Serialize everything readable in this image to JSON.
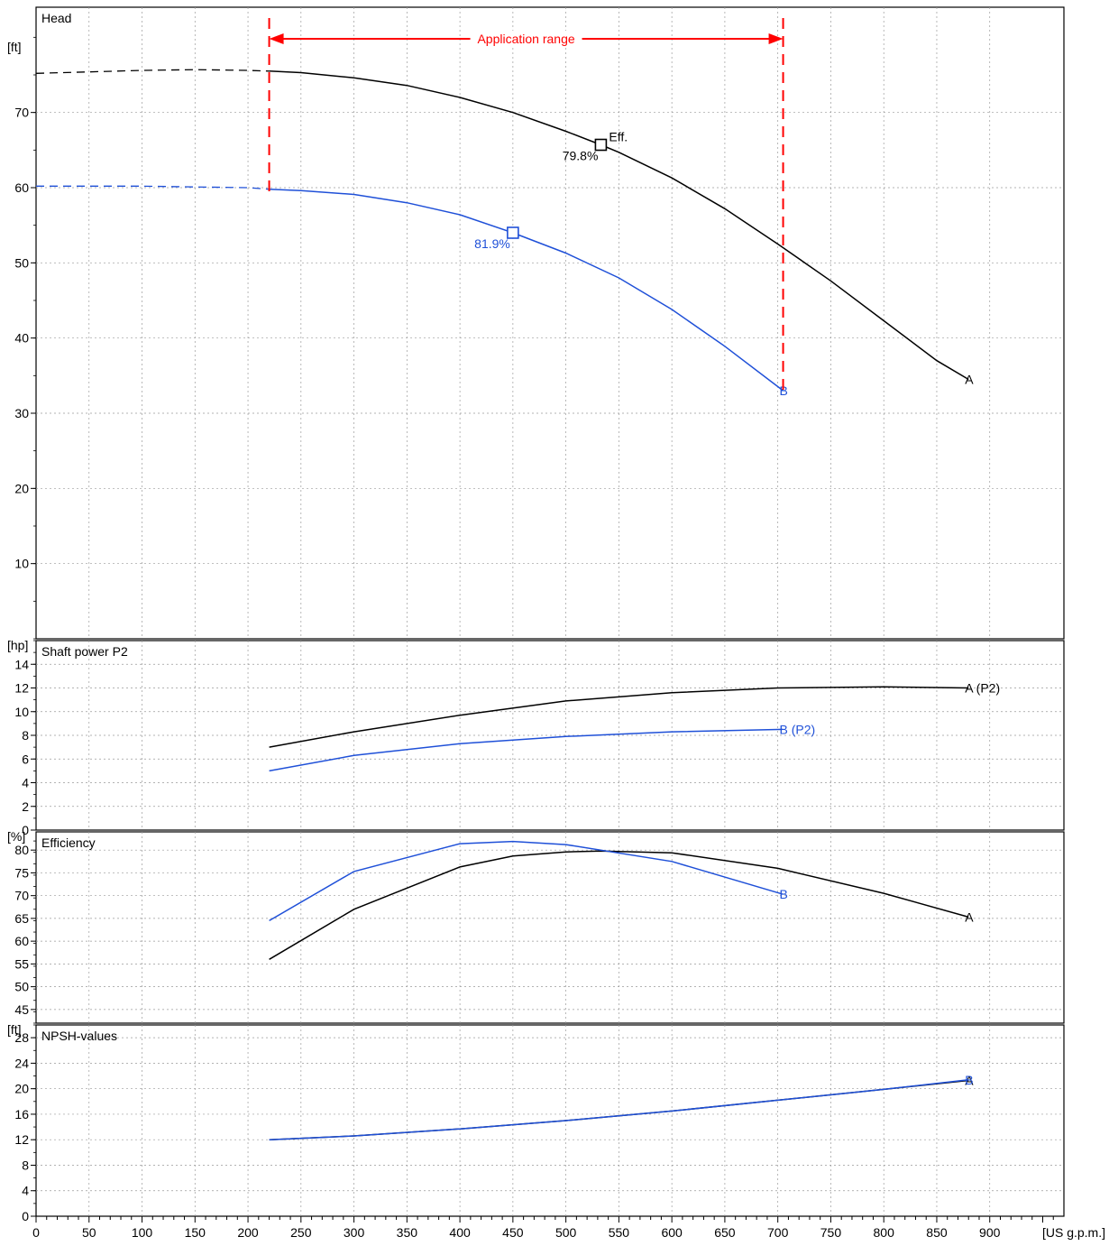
{
  "colors": {
    "series_a": "#000000",
    "series_b": "#1f50d8",
    "application_range": "#ff0000",
    "grid": "#9a9a9a",
    "frame": "#000000"
  },
  "x_axis": {
    "unit_label": "[US g.p.m.]",
    "range": [
      0,
      970
    ],
    "ticks": [
      0,
      50,
      100,
      150,
      200,
      250,
      300,
      350,
      400,
      450,
      500,
      550,
      600,
      650,
      700,
      750,
      800,
      850,
      900
    ],
    "tick_labels": [
      "0",
      "50",
      "100",
      "150",
      "200",
      "250",
      "300",
      "350",
      "400",
      "450",
      "500",
      "550",
      "600",
      "650",
      "700",
      "750",
      "800",
      "850",
      "900"
    ],
    "minor_step": 10
  },
  "application_range": {
    "label": "Application range",
    "x_start": 220,
    "x_end": 705
  },
  "chart_data": [
    {
      "type": "line",
      "title": "Head",
      "ylabel": "[ft]",
      "ylim": [
        0,
        84
      ],
      "yticks": [
        10,
        20,
        30,
        40,
        50,
        60,
        70
      ],
      "ytick_labels": [
        "10",
        "20",
        "30",
        "40",
        "50",
        "60",
        "70"
      ],
      "grid": true,
      "series": [
        {
          "name": "A",
          "x": [
            0,
            50,
            100,
            150,
            200,
            220,
            250,
            300,
            350,
            400,
            450,
            500,
            533,
            550,
            600,
            650,
            700,
            750,
            800,
            850,
            880
          ],
          "y": [
            75.2,
            75.4,
            75.6,
            75.7,
            75.6,
            75.5,
            75.3,
            74.6,
            73.6,
            72.0,
            70.0,
            67.5,
            65.7,
            64.7,
            61.3,
            57.2,
            52.5,
            47.6,
            42.3,
            37.0,
            34.5
          ],
          "label_x": 880,
          "label_y": 34.5
        },
        {
          "name": "B",
          "x": [
            0,
            50,
            100,
            150,
            200,
            220,
            250,
            300,
            350,
            400,
            450,
            500,
            550,
            600,
            650,
            705
          ],
          "y": [
            60.2,
            60.2,
            60.2,
            60.1,
            60.0,
            59.8,
            59.6,
            59.1,
            58.0,
            56.4,
            54.0,
            51.3,
            48.0,
            43.8,
            38.9,
            33.0
          ],
          "label_x": 705,
          "label_y": 33.0
        }
      ],
      "dashed_until_x": 220,
      "annotations": [
        {
          "series": "A",
          "x": 533,
          "y": 65.7,
          "efficiency_text": "79.8%",
          "marker_text": "Eff."
        },
        {
          "series": "B",
          "x": 450,
          "y": 54.0,
          "efficiency_text": "81.9%"
        }
      ]
    },
    {
      "type": "line",
      "title": "Shaft power P2",
      "ylabel": "[hp]",
      "ylim": [
        0,
        16
      ],
      "yticks": [
        0,
        2,
        4,
        6,
        8,
        10,
        12,
        14
      ],
      "ytick_labels": [
        "0",
        "2",
        "4",
        "6",
        "8",
        "10",
        "12",
        "14"
      ],
      "grid": true,
      "series": [
        {
          "name": "A (P2)",
          "x": [
            220,
            300,
            400,
            500,
            600,
            700,
            800,
            880
          ],
          "y": [
            7.0,
            8.3,
            9.7,
            10.9,
            11.6,
            12.0,
            12.1,
            12.0
          ]
        },
        {
          "name": "B (P2)",
          "x": [
            220,
            300,
            400,
            500,
            600,
            705
          ],
          "y": [
            5.0,
            6.3,
            7.3,
            7.9,
            8.3,
            8.5
          ]
        }
      ]
    },
    {
      "type": "line",
      "title": "Efficiency",
      "ylabel": "[%]",
      "ylim": [
        42,
        84
      ],
      "yticks": [
        45,
        50,
        55,
        60,
        65,
        70,
        75,
        80
      ],
      "ytick_labels": [
        "45",
        "50",
        "55",
        "60",
        "65",
        "70",
        "75",
        "80"
      ],
      "grid": true,
      "series": [
        {
          "name": "A",
          "x": [
            220,
            300,
            400,
            450,
            500,
            533,
            600,
            700,
            800,
            880
          ],
          "y": [
            56.0,
            67.0,
            76.3,
            78.7,
            79.6,
            79.8,
            79.4,
            76.0,
            70.5,
            65.3
          ]
        },
        {
          "name": "B",
          "x": [
            220,
            300,
            400,
            450,
            500,
            600,
            705
          ],
          "y": [
            64.5,
            75.3,
            81.4,
            81.9,
            81.2,
            77.5,
            70.3
          ]
        }
      ]
    },
    {
      "type": "line",
      "title": "NPSH-values",
      "ylabel": "[ft]",
      "ylim": [
        0,
        30
      ],
      "yticks": [
        0,
        4,
        8,
        12,
        16,
        20,
        24,
        28
      ],
      "ytick_labels": [
        "0",
        "4",
        "8",
        "12",
        "16",
        "20",
        "24",
        "28"
      ],
      "grid": true,
      "series": [
        {
          "name": "A",
          "x": [
            220,
            300,
            400,
            500,
            600,
            700,
            800,
            880
          ],
          "y": [
            12.0,
            12.6,
            13.7,
            15.0,
            16.5,
            18.2,
            19.9,
            21.3
          ]
        },
        {
          "name": "B",
          "x": [
            220,
            300,
            400,
            500,
            600,
            700,
            800,
            880
          ],
          "y": [
            12.0,
            12.6,
            13.7,
            15.0,
            16.5,
            18.2,
            19.9,
            21.4
          ]
        }
      ]
    }
  ]
}
